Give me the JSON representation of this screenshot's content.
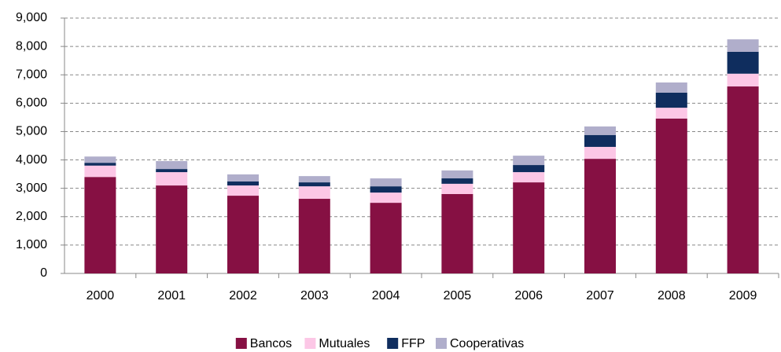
{
  "chart_data": {
    "type": "stacked_bar",
    "categories": [
      "2000",
      "2001",
      "2002",
      "2003",
      "2004",
      "2005",
      "2006",
      "2007",
      "2008",
      "2009"
    ],
    "series": [
      {
        "name": "Bancos",
        "color": "#861043",
        "values": [
          3400,
          3100,
          2740,
          2630,
          2490,
          2800,
          3210,
          4040,
          5460,
          6590
        ]
      },
      {
        "name": "Mutuales",
        "color": "#fcc7e6",
        "values": [
          400,
          470,
          360,
          440,
          360,
          360,
          360,
          420,
          380,
          450
        ]
      },
      {
        "name": "FFP",
        "color": "#0f2d5e",
        "values": [
          100,
          110,
          140,
          140,
          220,
          190,
          250,
          420,
          530,
          770
        ]
      },
      {
        "name": "Cooperativas",
        "color": "#b0aecb",
        "values": [
          220,
          280,
          250,
          220,
          280,
          280,
          330,
          300,
          360,
          440
        ]
      }
    ],
    "ylim": [
      0,
      9000
    ],
    "yticks": [
      0,
      {
        "value": 1000,
        "label": "1,000"
      },
      {
        "value": 2000,
        "label": "2,000"
      },
      {
        "value": 3000,
        "label": "3,000"
      },
      {
        "value": 4000,
        "label": "4,000"
      },
      {
        "value": 5000,
        "label": "5,000"
      },
      {
        "value": 6000,
        "label": "6,000"
      },
      {
        "value": 7000,
        "label": "7,000"
      },
      {
        "value": 8000,
        "label": "8,000"
      },
      {
        "value": 9000,
        "label": "9,000"
      }
    ],
    "grid": true,
    "legend": "bottom"
  }
}
